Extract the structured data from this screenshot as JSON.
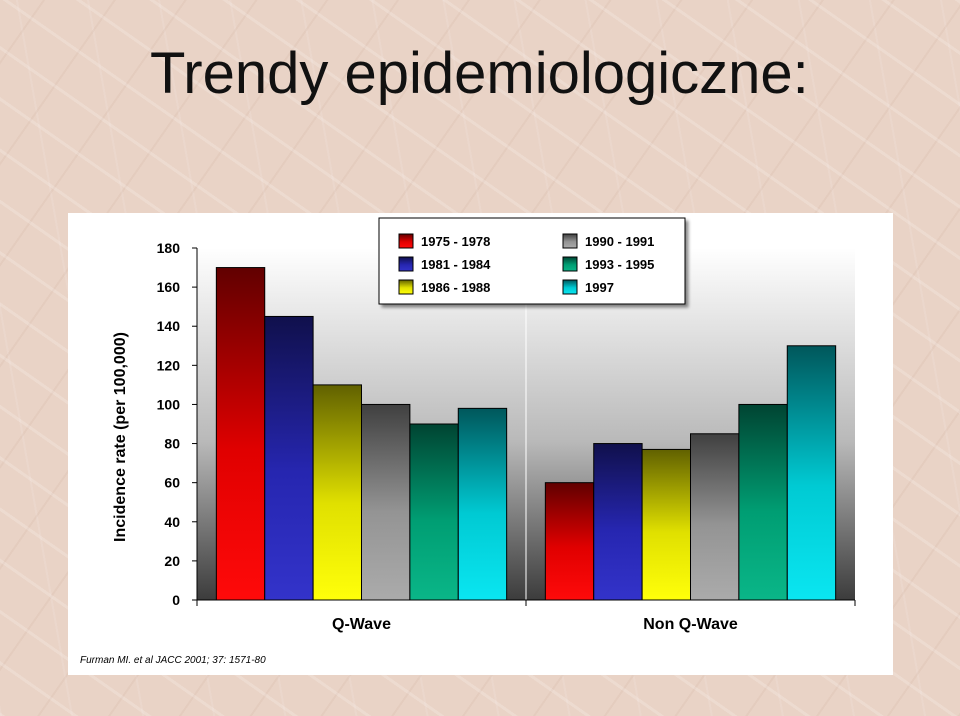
{
  "slide": {
    "title": "Trendy epidemiologiczne:",
    "citation": "Furman MI. et al JACC 2001; 37: 1571-80"
  },
  "chart_data": {
    "type": "bar",
    "title": "",
    "xlabel": "",
    "ylabel": "Incidence rate (per 100,000)",
    "ylim": [
      0,
      180
    ],
    "yticks": [
      0,
      20,
      40,
      60,
      80,
      100,
      120,
      140,
      160,
      180
    ],
    "grid": false,
    "legend_position": "top-center",
    "categories": [
      "Q-Wave",
      "Non Q-Wave"
    ],
    "series": [
      {
        "name": "1975 - 1978",
        "color": "#ff0000",
        "values": [
          170,
          60
        ]
      },
      {
        "name": "1981 - 1984",
        "color": "#2b2bc8",
        "values": [
          145,
          80
        ]
      },
      {
        "name": "1986 - 1988",
        "color": "#ffff00",
        "values": [
          110,
          77
        ]
      },
      {
        "name": "1990 - 1991",
        "color": "#a8a8a8",
        "values": [
          100,
          85
        ]
      },
      {
        "name": "1993 - 1995",
        "color": "#00b383",
        "values": [
          90,
          100
        ]
      },
      {
        "name": "1997",
        "color": "#00e5f0",
        "values": [
          98,
          130
        ]
      }
    ]
  }
}
